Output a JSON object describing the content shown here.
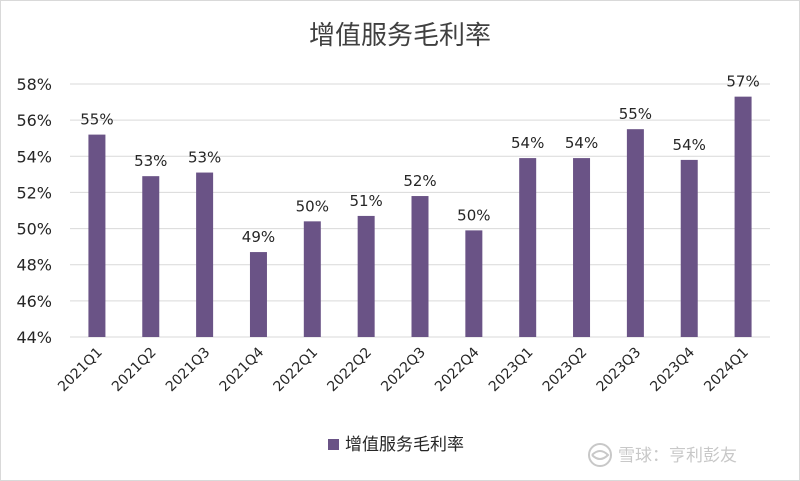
{
  "chart_data": {
    "type": "bar",
    "title": "增值服务毛利率",
    "categories": [
      "2021Q1",
      "2021Q2",
      "2021Q3",
      "2021Q4",
      "2022Q1",
      "2022Q2",
      "2022Q3",
      "2022Q4",
      "2023Q1",
      "2023Q2",
      "2023Q3",
      "2023Q4",
      "2024Q1"
    ],
    "series": [
      {
        "name": "增值服务毛利率",
        "values": [
          0.552,
          0.529,
          0.531,
          0.487,
          0.504,
          0.507,
          0.518,
          0.499,
          0.539,
          0.539,
          0.555,
          0.538,
          0.573
        ],
        "data_labels": [
          "55%",
          "53%",
          "53%",
          "49%",
          "50%",
          "51%",
          "52%",
          "50%",
          "54%",
          "54%",
          "55%",
          "54%",
          "57%"
        ]
      }
    ],
    "ylim": [
      0.44,
      0.58
    ],
    "yticks": [
      0.44,
      0.46,
      0.48,
      0.5,
      0.52,
      0.54,
      0.56,
      0.58
    ],
    "ytick_labels": [
      "44%",
      "46%",
      "48%",
      "50%",
      "52%",
      "54%",
      "56%",
      "58%"
    ],
    "xlabel": "",
    "ylabel": "",
    "grid": true,
    "legend_position": "bottom",
    "colors": {
      "bar": "#6a5386",
      "grid": "#d9d9d9",
      "text": "#262626",
      "title": "#404040"
    }
  },
  "watermark": {
    "text": "雪球：亨利彭友"
  }
}
